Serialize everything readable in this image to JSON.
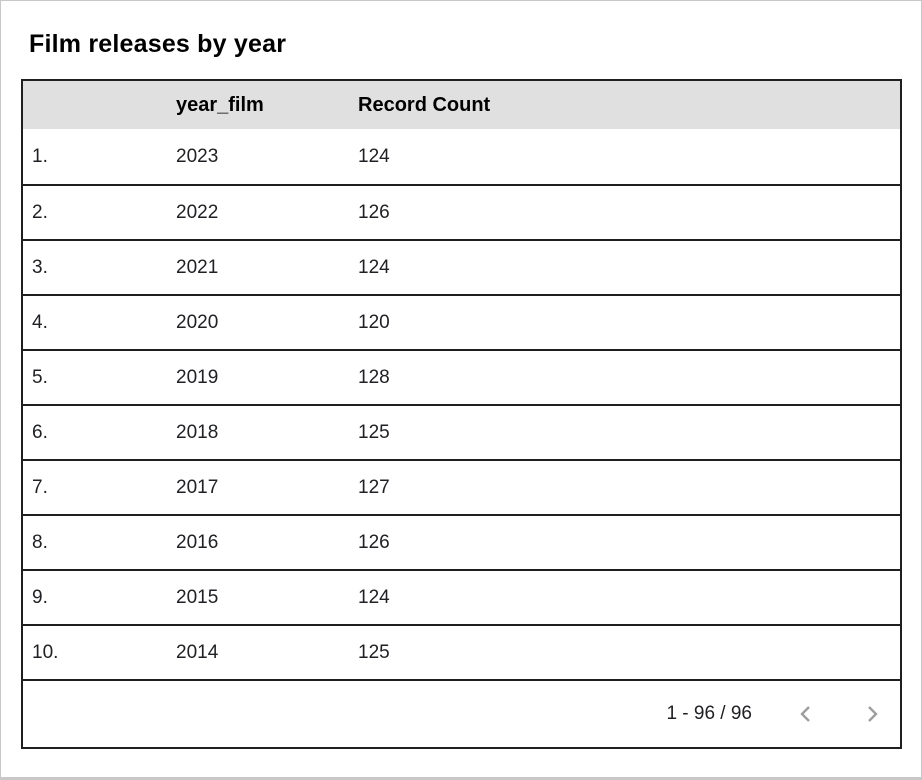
{
  "title": "Film releases by year",
  "table": {
    "columns": {
      "index": "",
      "year": "year_film",
      "count": "Record Count"
    },
    "rows": [
      {
        "index": "1.",
        "year": "2023",
        "count": "124"
      },
      {
        "index": "2.",
        "year": "2022",
        "count": "126"
      },
      {
        "index": "3.",
        "year": "2021",
        "count": "124"
      },
      {
        "index": "4.",
        "year": "2020",
        "count": "120"
      },
      {
        "index": "5.",
        "year": "2019",
        "count": "128"
      },
      {
        "index": "6.",
        "year": "2018",
        "count": "125"
      },
      {
        "index": "7.",
        "year": "2017",
        "count": "127"
      },
      {
        "index": "8.",
        "year": "2016",
        "count": "126"
      },
      {
        "index": "9.",
        "year": "2015",
        "count": "124"
      },
      {
        "index": "10.",
        "year": "2014",
        "count": "125"
      }
    ]
  },
  "pagination": {
    "range": "1 - 96 / 96",
    "prev_icon": "chevron-left-icon",
    "next_icon": "chevron-right-icon"
  },
  "colors": {
    "header_bg": "#e0e0e0",
    "border": "#1f1f1f",
    "chevron": "#9e9e9e",
    "text": "#202124",
    "title": "#000000",
    "frame_border": "#c8c8c8"
  },
  "chart_data": {
    "type": "table",
    "title": "Film releases by year",
    "columns": [
      "year_film",
      "Record Count"
    ],
    "rows": [
      [
        2023,
        124
      ],
      [
        2022,
        126
      ],
      [
        2021,
        124
      ],
      [
        2020,
        120
      ],
      [
        2019,
        128
      ],
      [
        2018,
        125
      ],
      [
        2017,
        127
      ],
      [
        2016,
        126
      ],
      [
        2015,
        124
      ],
      [
        2014,
        125
      ]
    ],
    "pagination": "1 - 96 / 96",
    "total_records": 96,
    "visible_range": [
      1,
      96
    ]
  }
}
